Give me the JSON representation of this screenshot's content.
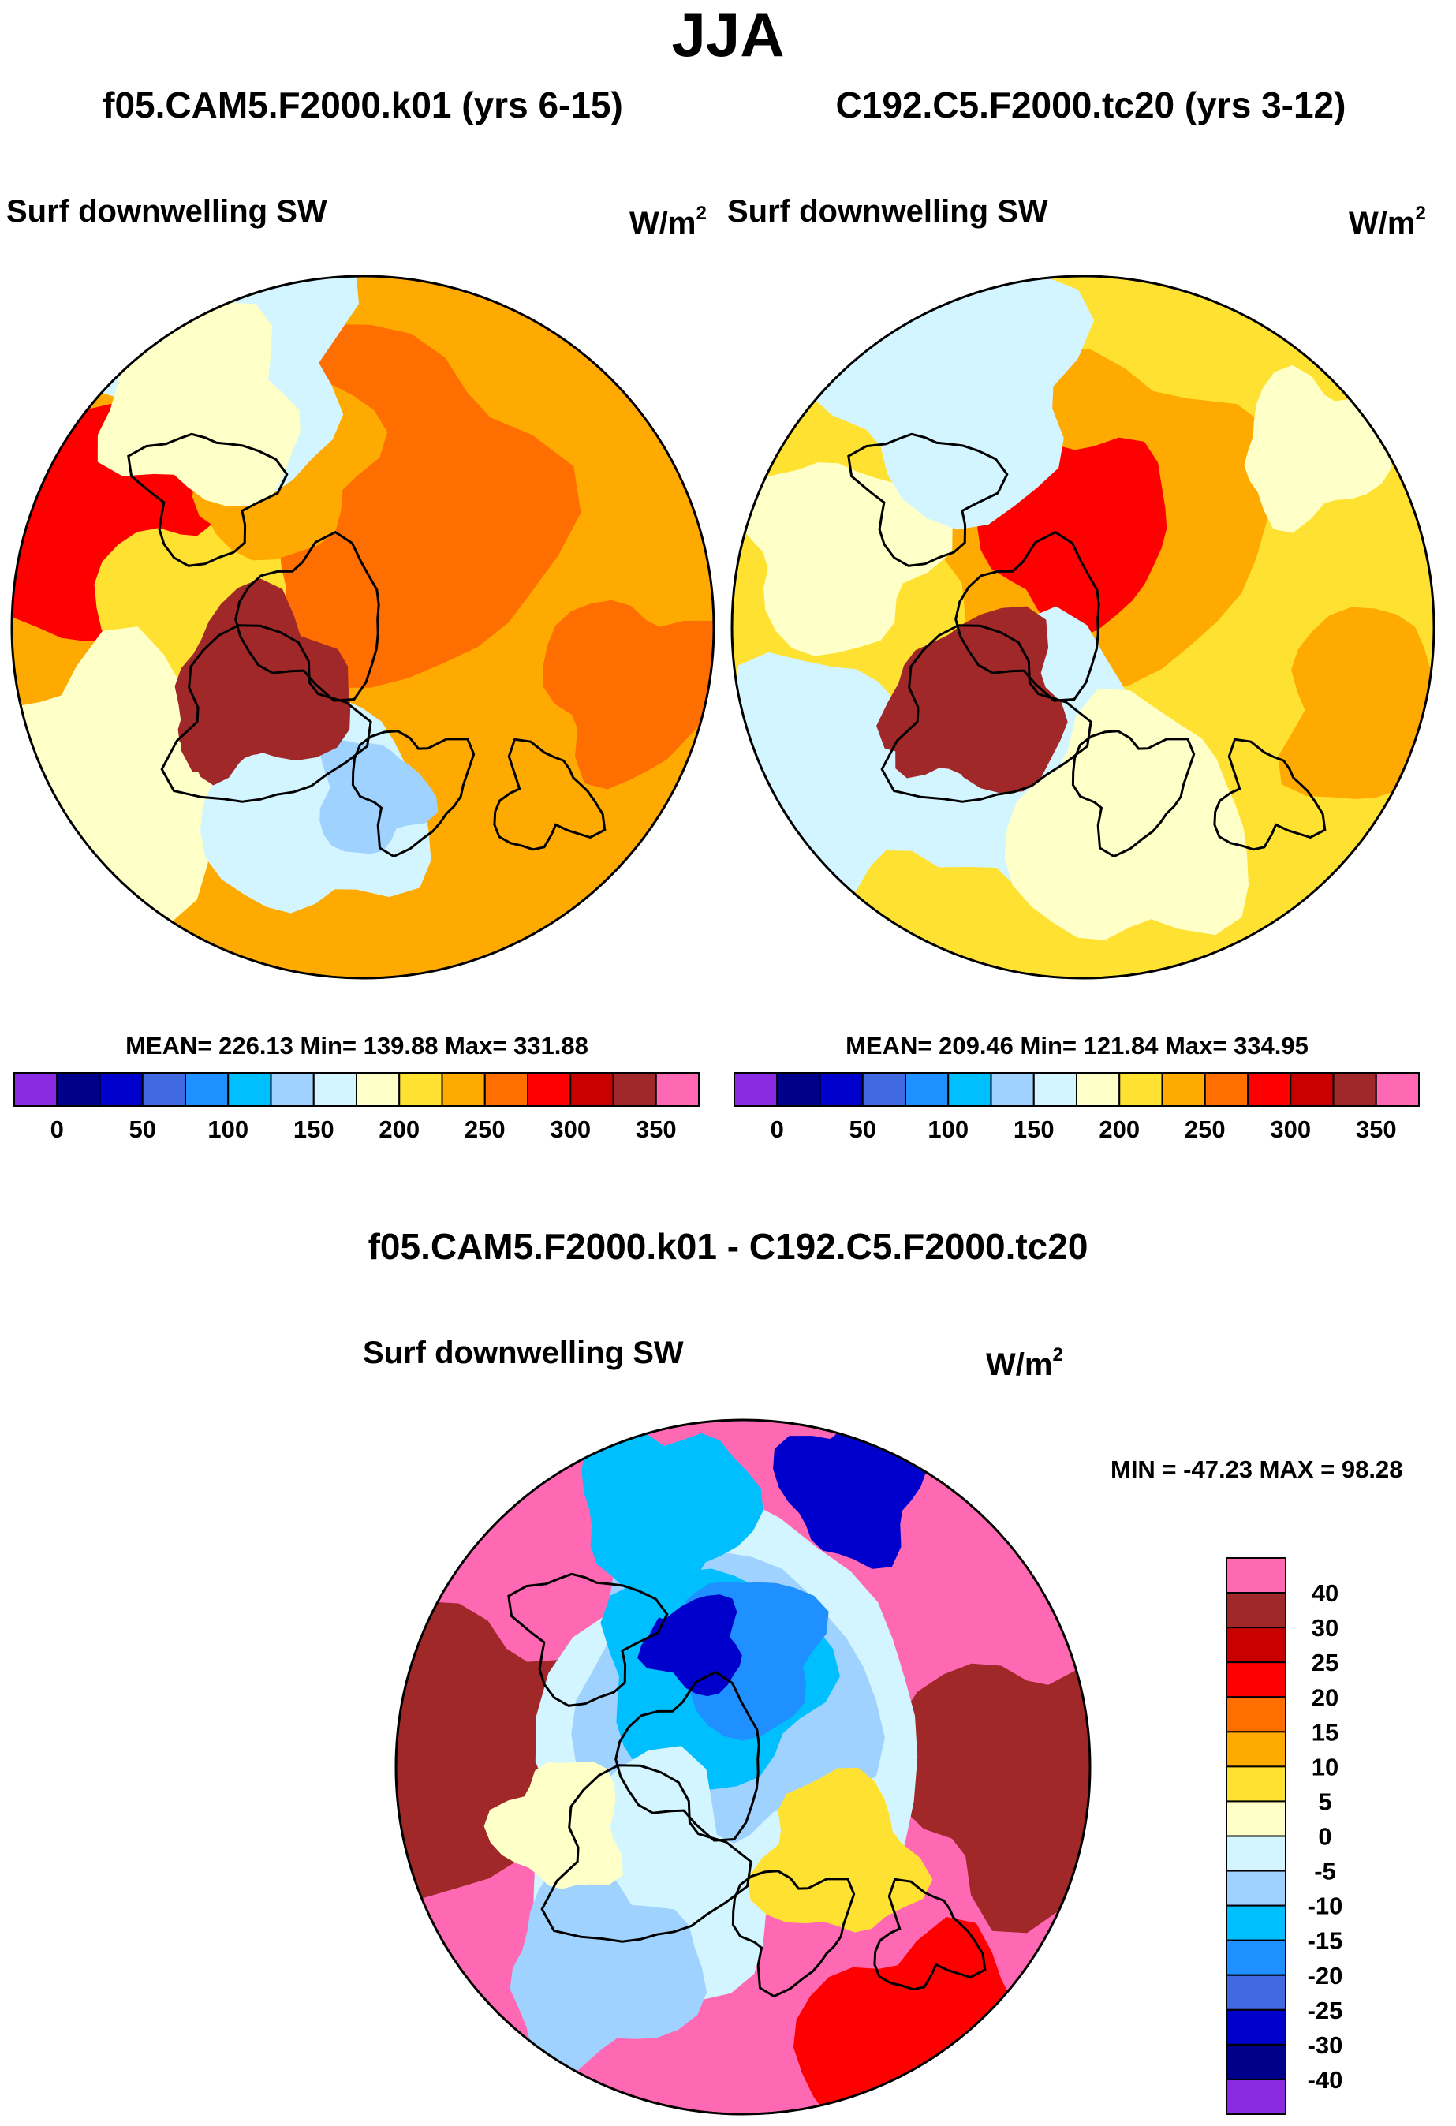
{
  "title": "JJA",
  "units_base": "W/m",
  "units_exp": "2",
  "panels": [
    {
      "case": "f05.CAM5.F2000.k01 (yrs 6-15)",
      "variable": "Surf downwelling SW",
      "stats_label": "MEAN= 226.13  Min= 139.88  Max= 331.88"
    },
    {
      "case": "C192.C5.F2000.tc20 (yrs 3-12)",
      "variable": "Surf downwelling SW",
      "stats_label": "MEAN= 209.46  Min= 121.84  Max= 334.95"
    }
  ],
  "difference": {
    "title": "f05.CAM5.F2000.k01 - C192.C5.F2000.tc20",
    "variable": "Surf downwelling SW",
    "stats_label": "MIN = -47.23 MAX =  98.28"
  },
  "chart_data": [
    {
      "type": "heatmap",
      "projection": "polar-stereographic-north",
      "title": "f05.CAM5.F2000.k01 (yrs 6-15)",
      "subtitle": "Surf downwelling SW",
      "units": "W/m2",
      "mean": 226.13,
      "min": 139.88,
      "max": 331.88,
      "colorbar": {
        "orientation": "horizontal",
        "levels": [
          0,
          25,
          50,
          75,
          100,
          125,
          150,
          175,
          200,
          225,
          250,
          275,
          300,
          325,
          350
        ],
        "tick_labels": [
          "0",
          "50",
          "100",
          "150",
          "200",
          "250",
          "300",
          "350"
        ],
        "colors": [
          "#8a2be2",
          "#00008b",
          "#0000cd",
          "#4169e1",
          "#1e90ff",
          "#00bfff",
          "#a0d2ff",
          "#d2f5ff",
          "#ffffc8",
          "#ffe132",
          "#ffaa00",
          "#ff6e00",
          "#ff0000",
          "#c80000",
          "#a02828",
          "#ff69b4"
        ]
      }
    },
    {
      "type": "heatmap",
      "projection": "polar-stereographic-north",
      "title": "C192.C5.F2000.tc20 (yrs 3-12)",
      "subtitle": "Surf downwelling SW",
      "units": "W/m2",
      "mean": 209.46,
      "min": 121.84,
      "max": 334.95,
      "colorbar": {
        "orientation": "horizontal",
        "levels": [
          0,
          25,
          50,
          75,
          100,
          125,
          150,
          175,
          200,
          225,
          250,
          275,
          300,
          325,
          350
        ],
        "tick_labels": [
          "0",
          "50",
          "100",
          "150",
          "200",
          "250",
          "300",
          "350"
        ],
        "colors": [
          "#8a2be2",
          "#00008b",
          "#0000cd",
          "#4169e1",
          "#1e90ff",
          "#00bfff",
          "#a0d2ff",
          "#d2f5ff",
          "#ffffc8",
          "#ffe132",
          "#ffaa00",
          "#ff6e00",
          "#ff0000",
          "#c80000",
          "#a02828",
          "#ff69b4"
        ]
      }
    },
    {
      "type": "heatmap",
      "projection": "polar-stereographic-north",
      "title": "f05.CAM5.F2000.k01 - C192.C5.F2000.tc20",
      "subtitle": "Surf downwelling SW",
      "units": "W/m2",
      "min": -47.23,
      "max": 98.28,
      "colorbar": {
        "orientation": "vertical",
        "levels": [
          40,
          30,
          25,
          20,
          15,
          10,
          5,
          0,
          -5,
          -10,
          -15,
          -20,
          -25,
          -30,
          -40
        ],
        "tick_labels": [
          "40",
          "30",
          "25",
          "20",
          "15",
          "10",
          "5",
          "0",
          "-5",
          "-10",
          "-15",
          "-20",
          "-25",
          "-30",
          "-40"
        ],
        "colors": [
          "#ff69b4",
          "#a02828",
          "#c80000",
          "#ff0000",
          "#ff6e00",
          "#ffaa00",
          "#ffe132",
          "#ffffc8",
          "#d2f5ff",
          "#a0d2ff",
          "#00bfff",
          "#1e90ff",
          "#4169e1",
          "#0000cd",
          "#00008b",
          "#8a2be2"
        ]
      }
    }
  ]
}
